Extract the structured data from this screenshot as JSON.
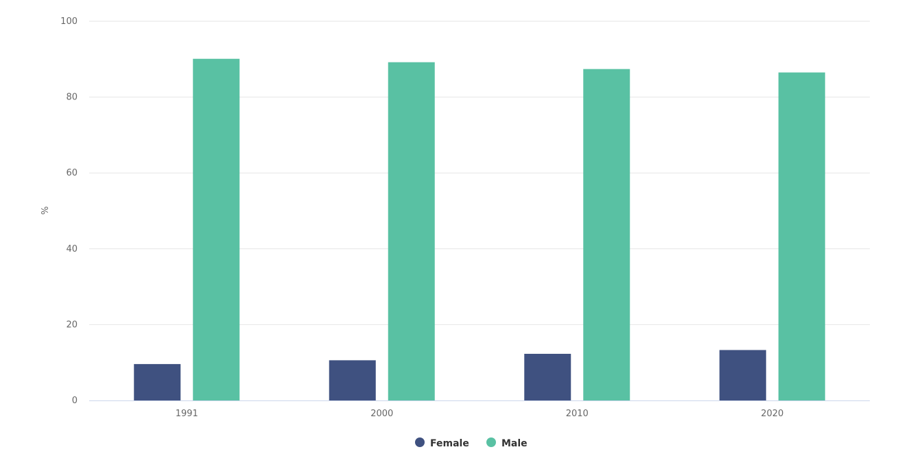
{
  "chart_data": {
    "type": "bar",
    "categories": [
      "1991",
      "2000",
      "2010",
      "2020"
    ],
    "series": [
      {
        "name": "Female",
        "color": "#3f5180",
        "values": [
          9.6,
          10.6,
          12.3,
          13.3
        ]
      },
      {
        "name": "Male",
        "color": "#59c1a3",
        "values": [
          90.1,
          89.2,
          87.4,
          86.5
        ]
      }
    ],
    "title": "",
    "xlabel": "",
    "ylabel": "%",
    "ylim": [
      0,
      100
    ],
    "yticks": [
      "0",
      "20",
      "40",
      "60",
      "80",
      "100"
    ],
    "grid": true,
    "legend_position": "bottom-center"
  }
}
